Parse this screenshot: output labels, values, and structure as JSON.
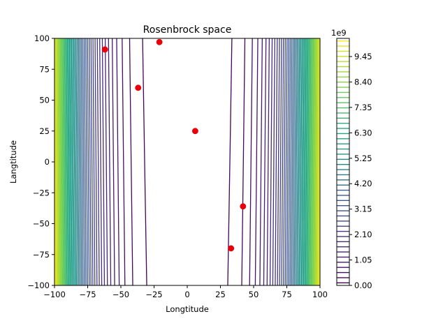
{
  "chart_data": {
    "type": "contour",
    "title": "Rosenbrock space",
    "xlabel": "Longtitude",
    "ylabel": "Langtitude",
    "xlim": [
      -100,
      100
    ],
    "ylim": [
      -100,
      100
    ],
    "xticks": [
      "−100",
      "−75",
      "−50",
      "−25",
      "0",
      "25",
      "50",
      "75",
      "100"
    ],
    "yticks": [
      "−100",
      "−75",
      "−50",
      "−25",
      "0",
      "25",
      "50",
      "75",
      "100"
    ],
    "xtick_values": [
      -100,
      -75,
      -50,
      -25,
      0,
      25,
      50,
      75,
      100
    ],
    "ytick_values": [
      -100,
      -75,
      -50,
      -25,
      0,
      25,
      50,
      75,
      100
    ],
    "function": "rosenbrock",
    "colormap": "viridis",
    "colorbar": {
      "offset_text": "1e9",
      "ticks": [
        "0.00",
        "1.05",
        "2.10",
        "3.15",
        "4.20",
        "5.25",
        "6.30",
        "7.35",
        "8.40",
        "9.45"
      ],
      "tick_values": [
        0,
        1.05,
        2.1,
        3.15,
        4.2,
        5.25,
        6.3,
        7.35,
        8.4,
        9.45
      ],
      "max": 10.2
    },
    "points": {
      "color": "#e8000b",
      "x": [
        -62,
        -37,
        -21,
        6,
        33,
        42
      ],
      "y": [
        91,
        60,
        97,
        25,
        -70,
        -36
      ]
    },
    "grid": false
  }
}
